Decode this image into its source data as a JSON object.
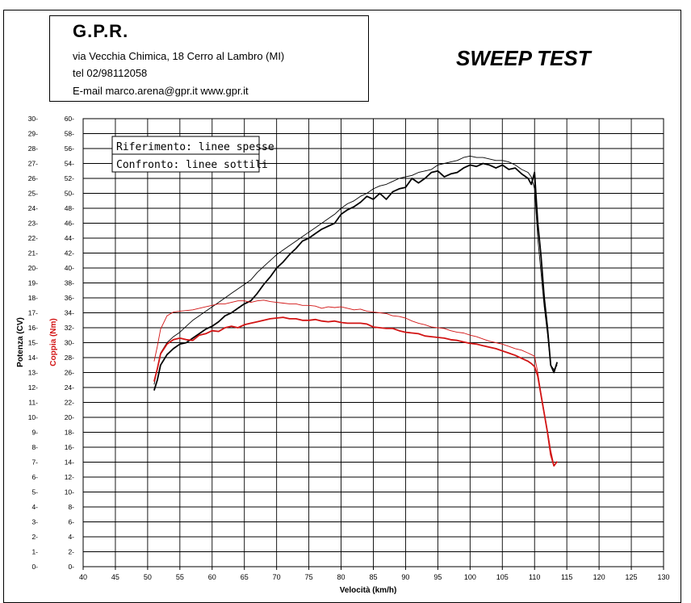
{
  "header": {
    "company_name": "G.P.R.",
    "address": "via Vecchia Chimica, 18 Cerro al Lambro (MI)",
    "phone": "tel 02/98112058",
    "contact": "E-mail marco.arena@gpr.it  www.gpr.it"
  },
  "report_title": "SWEEP TEST",
  "colors": {
    "power": "#000000",
    "torque": "#d21414",
    "grid": "#000000"
  },
  "chart_data": {
    "type": "line",
    "title": "SWEEP TEST",
    "xlabel": "Velocità (km/h)",
    "ylabel_left": "Potenza (CV)",
    "ylabel_right": "Coppia (Nm)",
    "xlim": [
      40,
      130
    ],
    "ylim_power": [
      0,
      30
    ],
    "ylim_torque": [
      0,
      60
    ],
    "x_ticks": [
      40,
      45,
      50,
      55,
      60,
      65,
      70,
      75,
      80,
      85,
      90,
      95,
      100,
      105,
      110,
      115,
      120,
      125,
      130
    ],
    "power_ticks": [
      0,
      1,
      2,
      3,
      4,
      5,
      6,
      7,
      8,
      9,
      10,
      11,
      12,
      13,
      14,
      15,
      16,
      17,
      18,
      19,
      20,
      21,
      22,
      23,
      24,
      25,
      26,
      27,
      28,
      29,
      30
    ],
    "torque_ticks": [
      0,
      2,
      4,
      6,
      8,
      10,
      12,
      14,
      16,
      18,
      20,
      22,
      24,
      26,
      28,
      30,
      32,
      34,
      36,
      38,
      40,
      42,
      44,
      46,
      48,
      50,
      52,
      54,
      56,
      58,
      60
    ],
    "legend": {
      "reference": "Riferimento: linee spesse",
      "comparison": "Confronto: linee sottili"
    },
    "series": [
      {
        "name": "Potenza - Riferimento",
        "axis": "power",
        "style": "thick",
        "x": [
          51,
          51.5,
          52,
          53,
          54,
          55,
          56,
          57,
          58,
          59,
          60,
          61,
          62,
          63,
          64,
          65,
          66,
          67,
          68,
          69,
          70,
          71,
          72,
          73,
          74,
          75,
          76,
          77,
          78,
          79,
          80,
          81,
          82,
          83,
          84,
          85,
          86,
          87,
          88,
          89,
          90,
          91,
          92,
          93,
          94,
          95,
          96,
          97,
          98,
          99,
          100,
          101,
          102,
          103,
          104,
          105,
          106,
          107,
          108,
          109,
          109.5,
          110,
          110.5,
          111,
          111.5,
          112,
          112.5,
          113,
          113.5
        ],
        "y": [
          11.8,
          12.5,
          13.5,
          14.2,
          14.6,
          14.9,
          15.0,
          15.3,
          15.6,
          15.9,
          16.1,
          16.4,
          16.8,
          17.0,
          17.3,
          17.6,
          17.8,
          18.3,
          18.9,
          19.4,
          20.0,
          20.4,
          20.9,
          21.3,
          21.8,
          22.0,
          22.3,
          22.6,
          22.8,
          23.0,
          23.6,
          23.9,
          24.1,
          24.4,
          24.8,
          24.6,
          25.0,
          24.6,
          25.1,
          25.3,
          25.4,
          26.0,
          25.7,
          26.0,
          26.4,
          26.5,
          26.1,
          26.3,
          26.4,
          26.7,
          26.9,
          26.8,
          27.0,
          26.9,
          26.7,
          26.9,
          26.6,
          26.7,
          26.3,
          26.0,
          25.6,
          26.4,
          23.0,
          20.8,
          18.0,
          16.0,
          13.5,
          13.0,
          13.7
        ]
      },
      {
        "name": "Potenza - Confronto",
        "axis": "power",
        "style": "thin",
        "x": [
          51,
          51.5,
          52,
          53,
          54,
          55,
          56,
          57,
          58,
          59,
          60,
          61,
          62,
          63,
          64,
          65,
          66,
          67,
          68,
          69,
          70,
          71,
          72,
          73,
          74,
          75,
          76,
          77,
          78,
          79,
          80,
          81,
          82,
          83,
          84,
          85,
          86,
          87,
          88,
          89,
          90,
          91,
          92,
          93,
          94,
          95,
          96,
          97,
          98,
          99,
          100,
          101,
          102,
          103,
          104,
          105,
          106,
          107,
          108,
          109,
          109.5,
          110,
          110.5,
          111,
          111.5,
          112,
          112.5,
          113,
          113.5
        ],
        "y": [
          12.2,
          13.3,
          14.3,
          15.0,
          15.4,
          15.7,
          16.1,
          16.5,
          16.8,
          17.1,
          17.4,
          17.7,
          18.0,
          18.3,
          18.6,
          18.9,
          19.2,
          19.7,
          20.1,
          20.5,
          20.9,
          21.2,
          21.5,
          21.8,
          22.1,
          22.4,
          22.7,
          23.0,
          23.3,
          23.6,
          24.0,
          24.3,
          24.5,
          24.8,
          25.0,
          25.3,
          25.5,
          25.6,
          25.8,
          26.0,
          26.1,
          26.2,
          26.4,
          26.5,
          26.6,
          26.9,
          27.0,
          27.1,
          27.2,
          27.4,
          27.5,
          27.4,
          27.4,
          27.3,
          27.2,
          27.2,
          27.1,
          26.9,
          26.6,
          26.4,
          26.1,
          25.3,
          22.0,
          19.7,
          17.4,
          15.6,
          13.5,
          13.2,
          13.5
        ]
      },
      {
        "name": "Coppia - Riferimento",
        "axis": "torque",
        "style": "thick",
        "x": [
          51,
          51.5,
          52,
          53,
          54,
          55,
          56,
          57,
          58,
          59,
          60,
          61,
          62,
          63,
          64,
          65,
          66,
          67,
          68,
          69,
          70,
          71,
          72,
          73,
          74,
          75,
          76,
          77,
          78,
          79,
          80,
          81,
          82,
          83,
          84,
          85,
          86,
          87,
          88,
          89,
          90,
          91,
          92,
          93,
          94,
          95,
          96,
          97,
          98,
          99,
          100,
          101,
          102,
          103,
          104,
          105,
          106,
          107,
          108,
          109,
          109.5,
          110,
          110.5,
          111,
          111.5,
          112,
          112.5,
          113,
          113.5
        ],
        "y": [
          24.8,
          26.5,
          28.5,
          29.8,
          30.4,
          30.6,
          30.4,
          30.3,
          31.0,
          31.2,
          31.6,
          31.5,
          32.0,
          32.2,
          32.0,
          32.4,
          32.6,
          32.8,
          33.0,
          33.2,
          33.3,
          33.4,
          33.2,
          33.2,
          33.0,
          33.0,
          33.1,
          32.9,
          32.8,
          32.9,
          32.7,
          32.6,
          32.6,
          32.6,
          32.5,
          32.1,
          32.0,
          31.9,
          31.9,
          31.6,
          31.4,
          31.3,
          31.2,
          30.9,
          30.8,
          30.7,
          30.6,
          30.4,
          30.3,
          30.1,
          29.9,
          29.8,
          29.6,
          29.4,
          29.2,
          28.9,
          28.6,
          28.3,
          27.9,
          27.5,
          27.2,
          26.8,
          25.5,
          23.0,
          20.5,
          18.0,
          15.0,
          13.5,
          14.1
        ]
      },
      {
        "name": "Coppia - Confronto",
        "axis": "torque",
        "style": "thin",
        "x": [
          51,
          51.5,
          52,
          53,
          54,
          55,
          56,
          57,
          58,
          59,
          60,
          61,
          62,
          63,
          64,
          65,
          66,
          67,
          68,
          69,
          70,
          71,
          72,
          73,
          74,
          75,
          76,
          77,
          78,
          79,
          80,
          81,
          82,
          83,
          84,
          85,
          86,
          87,
          88,
          89,
          90,
          91,
          92,
          93,
          94,
          95,
          96,
          97,
          98,
          99,
          100,
          101,
          102,
          103,
          104,
          105,
          106,
          107,
          108,
          109,
          109.5,
          110,
          110.5,
          111,
          111.5,
          112,
          112.5,
          113,
          113.5
        ],
        "y": [
          27.5,
          29.5,
          31.8,
          33.6,
          34.1,
          34.2,
          34.3,
          34.4,
          34.6,
          34.8,
          35.0,
          35.2,
          35.2,
          35.4,
          35.6,
          35.6,
          35.4,
          35.6,
          35.7,
          35.5,
          35.4,
          35.3,
          35.2,
          35.2,
          35.0,
          35.0,
          34.9,
          34.6,
          34.8,
          34.7,
          34.8,
          34.6,
          34.4,
          34.5,
          34.2,
          34.1,
          34.0,
          33.9,
          33.6,
          33.5,
          33.3,
          32.9,
          32.6,
          32.4,
          32.1,
          32.0,
          31.9,
          31.6,
          31.4,
          31.3,
          31.0,
          30.8,
          30.5,
          30.2,
          30.0,
          29.8,
          29.5,
          29.2,
          29.0,
          28.6,
          28.4,
          28.2,
          26.0,
          23.2,
          20.6,
          18.2,
          15.6,
          13.6,
          14.0
        ]
      }
    ]
  }
}
